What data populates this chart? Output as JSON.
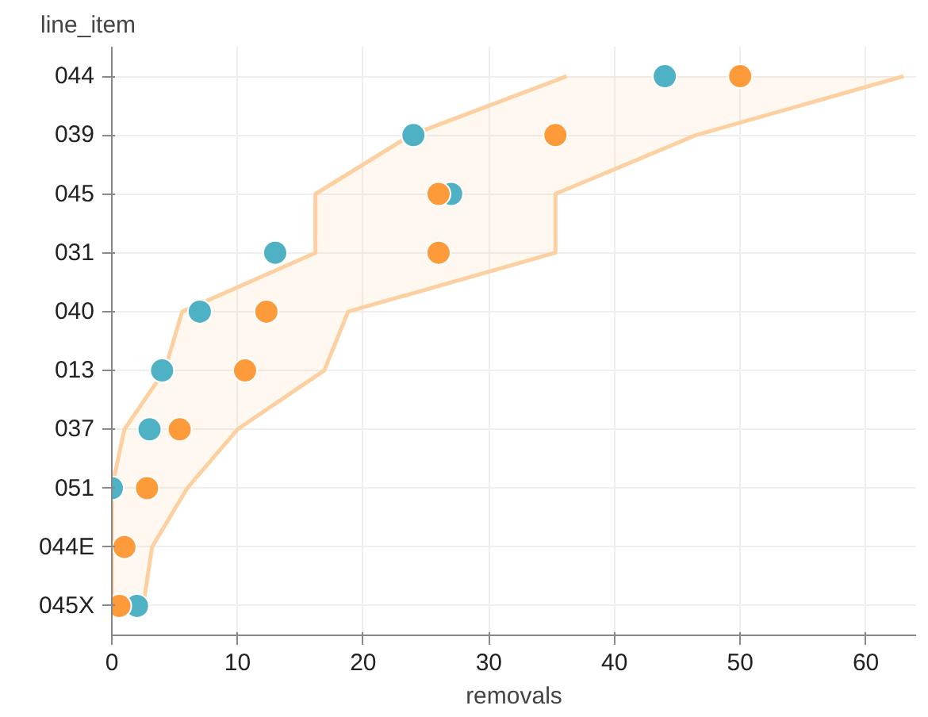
{
  "chart_data": {
    "type": "scatter",
    "orientation": "horizontal",
    "xlabel": "removals",
    "ylabel": "line_item",
    "categories": [
      "044",
      "039",
      "045",
      "031",
      "040",
      "013",
      "037",
      "051",
      "044E",
      "045X"
    ],
    "xlim": [
      0,
      64
    ],
    "xticks": [
      0,
      10,
      20,
      30,
      40,
      50,
      60
    ],
    "grid": true,
    "marker": "circle",
    "series": [
      {
        "type": "line",
        "marker": "none",
        "color": "#fdd0a2",
        "values": [
          36.2,
          23.8,
          16.2,
          16.2,
          5.6,
          4.2,
          1.0,
          0,
          0,
          0
        ]
      },
      {
        "type": "line",
        "marker": "none",
        "color": "#fdd0a2",
        "values": [
          63,
          46.5,
          35.3,
          35.3,
          18.8,
          16.9,
          10,
          6,
          3.2,
          2.5
        ],
        "lower": [
          36.2,
          23.8,
          16.2,
          16.2,
          5.6,
          4.2,
          1.0,
          0,
          0,
          0
        ],
        "upper": [
          63,
          46.5,
          35.3,
          35.3,
          18.8,
          16.9,
          10,
          6,
          3.2,
          2.5
        ]
      },
      {
        "color": "#4fb1c4",
        "values": [
          44,
          24,
          27,
          13,
          7,
          4,
          3,
          0,
          null,
          2
        ]
      },
      {
        "color": "#fd9b3a",
        "values": [
          50,
          35.3,
          26,
          26,
          12.3,
          10.6,
          5.4,
          2.8,
          1,
          0.6
        ]
      }
    ]
  }
}
